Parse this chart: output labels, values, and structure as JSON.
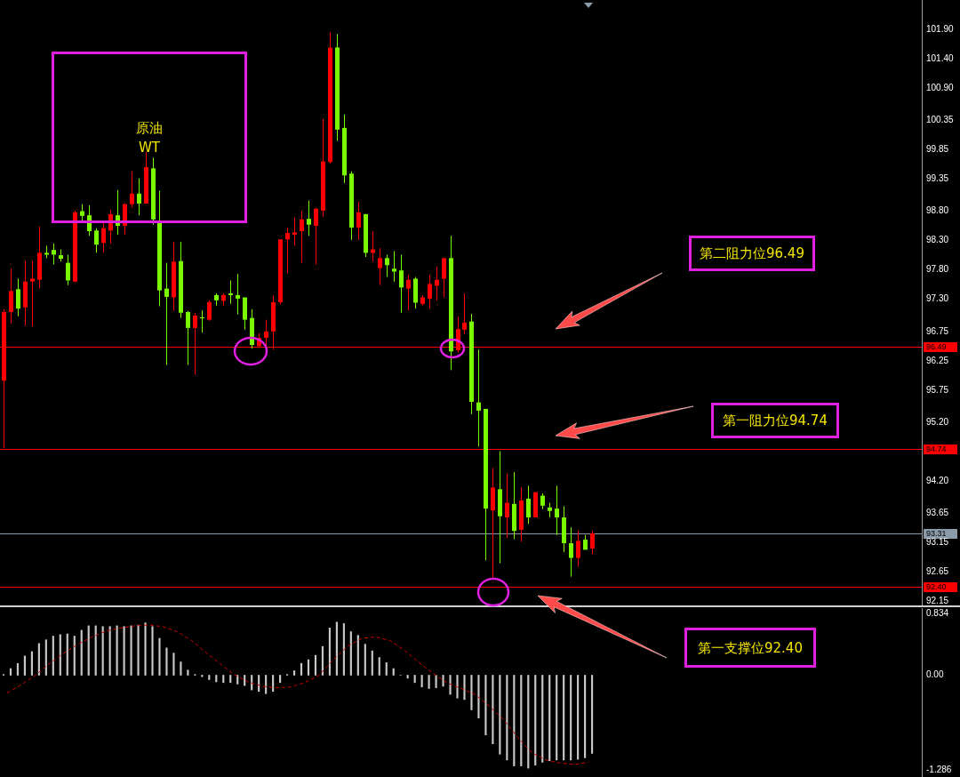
{
  "chart_data": [
    {
      "type": "candlestick",
      "categories": [
        null,
        null,
        null,
        null,
        null,
        null,
        null,
        null,
        null,
        null,
        null,
        null,
        null,
        null,
        null,
        null,
        null,
        null,
        null,
        null,
        null,
        null,
        null,
        null,
        null,
        null,
        null,
        null,
        null,
        null,
        null,
        null,
        null,
        null,
        null,
        null,
        null,
        null,
        null,
        null,
        null,
        null,
        null,
        null,
        null,
        null,
        null,
        null,
        null,
        null,
        null,
        null,
        null,
        null,
        null,
        null,
        null,
        null,
        null,
        null,
        null,
        null,
        null,
        null,
        null,
        null,
        null,
        null,
        null,
        null,
        null,
        null,
        null,
        null,
        null,
        null,
        null,
        null,
        null,
        null,
        null,
        null,
        null,
        null,
        null,
        null,
        null,
        null,
        null,
        null,
        null,
        null,
        null,
        null,
        null,
        null,
        null,
        null,
        null,
        null,
        null,
        null,
        null,
        null,
        null,
        null,
        null,
        null,
        null,
        null,
        null,
        null,
        null,
        null,
        null,
        null,
        null,
        null,
        null,
        null,
        null,
        null,
        null,
        null,
        null,
        null,
        null,
        null,
        null,
        null
      ],
      "ohlc": [
        [
          95.91,
          97.13,
          94.76,
          97.08
        ],
        [
          97.08,
          97.82,
          96.88,
          97.44
        ],
        [
          97.47,
          97.65,
          97.01,
          97.14
        ],
        [
          97.16,
          97.95,
          96.85,
          97.6
        ],
        [
          97.6,
          97.95,
          96.84,
          97.65
        ],
        [
          97.63,
          98.54,
          97.48,
          98.09
        ],
        [
          98.09,
          98.21,
          98.0,
          98.06
        ],
        [
          98.14,
          98.25,
          97.89,
          98.06
        ],
        [
          98.05,
          98.15,
          97.94,
          97.99
        ],
        [
          97.92,
          98.06,
          97.54,
          97.62
        ],
        [
          97.6,
          98.81,
          97.59,
          98.78
        ],
        [
          98.8,
          98.92,
          98.61,
          98.72
        ],
        [
          98.73,
          98.9,
          98.38,
          98.46
        ],
        [
          98.47,
          98.51,
          98.09,
          98.23
        ],
        [
          98.26,
          98.61,
          98.09,
          98.51
        ],
        [
          98.47,
          98.83,
          98.25,
          98.75
        ],
        [
          98.73,
          99.16,
          98.4,
          98.55
        ],
        [
          98.55,
          98.93,
          98.4,
          98.92
        ],
        [
          98.92,
          99.48,
          98.86,
          99.1
        ],
        [
          99.1,
          99.36,
          98.73,
          98.93
        ],
        [
          98.93,
          99.81,
          98.93,
          99.55
        ],
        [
          99.53,
          99.71,
          98.57,
          98.66
        ],
        [
          98.61,
          99.15,
          97.18,
          97.45
        ],
        [
          97.48,
          97.92,
          96.18,
          97.34
        ],
        [
          97.33,
          98.28,
          97.1,
          97.94
        ],
        [
          97.95,
          98.28,
          96.98,
          97.07
        ],
        [
          97.08,
          97.1,
          96.18,
          96.81
        ],
        [
          96.81,
          97.07,
          96.01,
          97.02
        ],
        [
          96.99,
          97.11,
          96.73,
          96.98
        ],
        [
          96.95,
          97.28,
          96.93,
          97.25
        ],
        [
          97.37,
          97.4,
          97.19,
          97.28
        ],
        [
          97.27,
          97.4,
          97.19,
          97.37
        ],
        [
          97.4,
          97.62,
          97.22,
          97.37
        ],
        [
          97.37,
          97.73,
          97.04,
          97.31
        ],
        [
          97.33,
          97.33,
          96.78,
          96.95
        ],
        [
          96.98,
          97.13,
          96.46,
          96.52
        ],
        [
          96.5,
          96.72,
          96.49,
          96.64
        ],
        [
          96.64,
          96.95,
          96.49,
          96.75
        ],
        [
          96.75,
          97.36,
          96.44,
          97.25
        ],
        [
          97.25,
          98.32,
          97.21,
          98.32
        ],
        [
          98.32,
          98.52,
          97.74,
          98.43
        ],
        [
          98.4,
          98.69,
          98.21,
          98.44
        ],
        [
          98.46,
          98.8,
          97.92,
          98.66
        ],
        [
          98.67,
          98.98,
          98.38,
          98.57
        ],
        [
          98.55,
          98.86,
          97.89,
          98.84
        ],
        [
          98.81,
          100.37,
          98.7,
          99.65
        ],
        [
          99.64,
          101.85,
          99.61,
          101.59
        ],
        [
          101.59,
          101.82,
          100.0,
          100.19
        ],
        [
          100.22,
          100.45,
          99.28,
          99.41
        ],
        [
          99.44,
          99.48,
          98.31,
          98.52
        ],
        [
          98.52,
          98.96,
          98.31,
          98.78
        ],
        [
          98.75,
          98.75,
          98.02,
          98.09
        ],
        [
          98.09,
          98.46,
          97.94,
          98.15
        ],
        [
          97.83,
          98.17,
          97.54,
          98.0
        ],
        [
          98.0,
          98.06,
          97.68,
          97.88
        ],
        [
          97.82,
          98.12,
          97.6,
          97.77
        ],
        [
          97.79,
          98.06,
          97.07,
          97.5
        ],
        [
          97.48,
          97.71,
          97.11,
          97.63
        ],
        [
          97.65,
          97.68,
          97.14,
          97.24
        ],
        [
          97.22,
          97.37,
          97.19,
          97.33
        ],
        [
          97.31,
          97.71,
          97.14,
          97.56
        ],
        [
          97.53,
          97.86,
          97.28,
          97.63
        ],
        [
          97.65,
          98.0,
          97.33,
          98.0
        ],
        [
          98.0,
          98.38,
          96.09,
          96.41
        ],
        [
          96.43,
          97.01,
          96.39,
          96.79
        ],
        [
          96.78,
          97.4,
          96.7,
          96.9
        ],
        [
          96.92,
          97.05,
          95.34,
          95.55
        ],
        [
          95.54,
          96.44,
          94.79,
          95.4
        ],
        [
          95.43,
          95.43,
          92.85,
          93.73
        ],
        [
          93.7,
          94.42,
          92.54,
          94.09
        ],
        [
          94.06,
          94.71,
          92.8,
          93.6
        ],
        [
          93.58,
          94.32,
          93.23,
          93.83
        ],
        [
          93.81,
          94.35,
          93.21,
          93.35
        ],
        [
          93.37,
          94.09,
          93.17,
          93.87
        ],
        [
          93.9,
          94.12,
          93.47,
          93.58
        ],
        [
          93.58,
          94.01,
          93.58,
          94.01
        ],
        [
          93.95,
          93.99,
          93.72,
          93.78
        ],
        [
          93.75,
          93.83,
          93.58,
          93.69
        ],
        [
          93.73,
          94.12,
          93.28,
          93.58
        ],
        [
          93.58,
          93.77,
          92.99,
          93.14
        ],
        [
          93.14,
          93.41,
          92.57,
          92.89
        ],
        [
          92.89,
          93.35,
          92.74,
          93.18
        ],
        [
          93.2,
          93.28,
          93.03,
          93.03
        ],
        [
          93.05,
          93.35,
          92.95,
          93.31
        ],
        null,
        null,
        null,
        null,
        null,
        null,
        null,
        null,
        null,
        null,
        null,
        null,
        null,
        null,
        null,
        null,
        null,
        null,
        null,
        null,
        null,
        null,
        null,
        null,
        null,
        null,
        null,
        null,
        null,
        null,
        null,
        null,
        null,
        null,
        null,
        null,
        null,
        null,
        null,
        null,
        null,
        null,
        null,
        null,
        null,
        null
      ],
      "colors": [
        "#ff0000",
        "#ff0000",
        "#7cfc00",
        "#ff0000",
        "#ff0000",
        "#ff0000",
        "#7cfc00",
        "#7cfc00",
        "#7cfc00",
        "#7cfc00",
        "#ff0000",
        "#7cfc00",
        "#7cfc00",
        "#7cfc00",
        "#ff0000",
        "#ff0000",
        "#7cfc00",
        "#ff0000",
        "#ff0000",
        "#7cfc00",
        "#ff0000",
        "#7cfc00",
        "#7cfc00",
        "#7cfc00",
        "#ff0000",
        "#7cfc00",
        "#7cfc00",
        "#ff0000",
        "#7cfc00",
        "#ff0000",
        "#7cfc00",
        "#ff0000",
        "#7cfc00",
        "#7cfc00",
        "#7cfc00",
        "#7cfc00",
        "#ff0000",
        "#ff0000",
        "#ff0000",
        "#ff0000",
        "#ff0000",
        "#ff0000",
        "#ff0000",
        "#7cfc00",
        "#ff0000",
        "#ff0000",
        "#ff0000",
        "#7cfc00",
        "#7cfc00",
        "#7cfc00",
        "#ff0000",
        "#7cfc00",
        "#ff0000",
        "#ff0000",
        "#7cfc00",
        "#7cfc00",
        "#7cfc00",
        "#ff0000",
        "#7cfc00",
        "#ff0000",
        "#ff0000",
        "#ff0000",
        "#ff0000",
        "#7cfc00",
        "#ff0000",
        "#ff0000",
        "#7cfc00",
        "#7cfc00",
        "#7cfc00",
        "#ff0000",
        "#7cfc00",
        "#ff0000",
        "#7cfc00",
        "#ff0000",
        "#7cfc00",
        "#ff0000",
        "#7cfc00",
        "#7cfc00",
        "#7cfc00",
        "#7cfc00",
        "#7cfc00",
        "#ff0000",
        "#7cfc00",
        "#ff0000",
        null,
        null,
        null,
        null,
        null,
        null,
        null,
        null,
        null,
        null,
        null,
        null,
        null,
        null,
        null,
        null,
        null,
        null,
        null,
        null,
        null,
        null,
        null,
        null,
        null,
        null,
        null,
        null,
        null,
        null,
        null,
        null,
        null,
        null,
        null,
        null,
        null,
        null,
        null,
        null,
        null,
        null,
        null,
        null,
        null,
        null
      ],
      "ylim": [
        92.08,
        102.4
      ],
      "yticks": [
        {
          "value": 101.9,
          "label": "101.90"
        },
        {
          "value": 101.4,
          "label": "101.40"
        },
        {
          "value": 100.9,
          "label": "100.90"
        },
        {
          "value": 100.35,
          "label": "100.35"
        },
        {
          "value": 99.85,
          "label": "99.85"
        },
        {
          "value": 99.35,
          "label": "99.35"
        },
        {
          "value": 98.8,
          "label": "98.80"
        },
        {
          "value": 98.3,
          "label": "98.30"
        },
        {
          "value": 97.8,
          "label": "97.80"
        },
        {
          "value": 97.3,
          "label": "97.30"
        },
        {
          "value": 96.75,
          "label": "96.75"
        },
        {
          "value": 96.25,
          "label": "96.25"
        },
        {
          "value": 95.75,
          "label": "95.75"
        },
        {
          "value": 95.2,
          "label": "95.20"
        },
        {
          "value": 94.2,
          "label": "94.20"
        },
        {
          "value": 93.65,
          "label": "93.65"
        },
        {
          "value": 93.15,
          "label": "93.15"
        },
        {
          "value": 92.65,
          "label": "92.65"
        },
        {
          "value": 92.15,
          "label": "92.15"
        }
      ],
      "tick_labels": "y",
      "ref_lines": [
        {
          "axis": "y",
          "value": 96.49,
          "label": "96.49",
          "color": "#ff0000"
        },
        {
          "axis": "y",
          "value": 94.74,
          "label": "94.74",
          "color": "#ff0000"
        },
        {
          "axis": "y",
          "value": 93.31,
          "label": "93.31",
          "color": "#8a9aa8"
        },
        {
          "axis": "y",
          "value": 92.4,
          "label": "92.40",
          "color": "#ff0000"
        }
      ],
      "annotations": [
        "原油\nWT",
        "第二阻力位96.49",
        "第一阻力位94.74",
        "第一支撑位92.40"
      ]
    },
    {
      "type": "bar",
      "categories": [
        null,
        null,
        null,
        null,
        null,
        null,
        null,
        null,
        null,
        null,
        null,
        null,
        null,
        null,
        null,
        null,
        null,
        null,
        null,
        null,
        null,
        null,
        null,
        null,
        null,
        null,
        null,
        null,
        null,
        null,
        null,
        null,
        null,
        null,
        null,
        null,
        null,
        null,
        null,
        null,
        null,
        null,
        null,
        null,
        null,
        null,
        null,
        null,
        null,
        null,
        null,
        null,
        null,
        null,
        null,
        null,
        null,
        null,
        null,
        null,
        null,
        null,
        null,
        null,
        null,
        null,
        null,
        null,
        null,
        null,
        null,
        null,
        null,
        null,
        null,
        null,
        null,
        null,
        null,
        null,
        null,
        null,
        null,
        null,
        null,
        null,
        null,
        null,
        null,
        null,
        null,
        null,
        null,
        null,
        null,
        null,
        null,
        null,
        null,
        null,
        null,
        null,
        null,
        null,
        null,
        null,
        null,
        null,
        null,
        null,
        null,
        null,
        null,
        null,
        null,
        null,
        null,
        null,
        null,
        null,
        null,
        null,
        null,
        null,
        null,
        null,
        null,
        null,
        null,
        null
      ],
      "series": [
        {
          "type": "bar",
          "color": "#c8c8c8",
          "values": [
            0.01,
            0.09,
            0.16,
            0.26,
            0.32,
            0.43,
            0.48,
            0.53,
            0.55,
            0.56,
            0.53,
            0.61,
            0.67,
            0.67,
            0.66,
            0.66,
            0.67,
            0.66,
            0.67,
            0.68,
            0.71,
            0.66,
            0.5,
            0.37,
            0.3,
            0.18,
            0.07,
            0.01,
            -0.02,
            -0.06,
            -0.09,
            -0.1,
            -0.1,
            -0.12,
            -0.14,
            -0.2,
            -0.22,
            -0.25,
            -0.22,
            -0.1,
            0.01,
            0.06,
            0.16,
            0.21,
            0.27,
            0.39,
            0.64,
            0.72,
            0.7,
            0.59,
            0.54,
            0.42,
            0.33,
            0.24,
            0.17,
            0.09,
            0.0,
            -0.04,
            -0.1,
            -0.16,
            -0.18,
            -0.17,
            -0.15,
            -0.26,
            -0.31,
            -0.33,
            -0.47,
            -0.58,
            -0.81,
            -0.93,
            -1.07,
            -1.15,
            -1.23,
            -1.23,
            -1.26,
            -1.22,
            -1.18,
            -1.16,
            -1.15,
            -1.15,
            -1.15,
            -1.14,
            -1.12,
            -1.06,
            null,
            null,
            null,
            null,
            null,
            null,
            null,
            null,
            null,
            null,
            null,
            null,
            null,
            null,
            null,
            null,
            null,
            null,
            null,
            null,
            null,
            null,
            null,
            null,
            null,
            null,
            null,
            null,
            null,
            null,
            null,
            null,
            null,
            null,
            null,
            null,
            null,
            null,
            null,
            null,
            null,
            null,
            null,
            null,
            null,
            null
          ]
        }
      ],
      "ylim": [
        -1.38,
        0.91
      ],
      "yticks": [
        {
          "value": 0.834,
          "label": "0.834"
        },
        {
          "value": 0,
          "label": "0.00"
        },
        {
          "value": -1.286,
          "label": "-1.286"
        }
      ],
      "tick_labels": "y"
    },
    {
      "type": "line",
      "categories": [
        null,
        null,
        null,
        null,
        null,
        null,
        null,
        null,
        null,
        null,
        null,
        null,
        null,
        null,
        null,
        null,
        null,
        null,
        null,
        null,
        null,
        null,
        null,
        null,
        null,
        null,
        null,
        null,
        null,
        null,
        null,
        null,
        null,
        null,
        null,
        null,
        null,
        null,
        null,
        null,
        null,
        null,
        null,
        null,
        null,
        null,
        null,
        null,
        null,
        null,
        null,
        null,
        null,
        null,
        null,
        null,
        null,
        null,
        null,
        null,
        null,
        null,
        null,
        null,
        null
      ],
      "series": [
        {
          "color": "#cc0000",
          "values": [
            -0.24,
            -0.13,
            0,
            0.16,
            0.3,
            0.42,
            0.52,
            0.6,
            0.64,
            0.67,
            0.68,
            0.66,
            0.59,
            0.47,
            0.31,
            0.16,
            0.01,
            -0.09,
            -0.15,
            -0.17,
            -0.16,
            -0.1,
            0,
            0.21,
            0.39,
            0.5,
            0.52,
            0.47,
            0.34,
            0.18,
            0.03,
            -0.1,
            -0.18,
            -0.26,
            -0.42,
            -0.6,
            -0.84,
            -1.05,
            -1.15,
            -1.19,
            -1.21,
            -1.18,
            null,
            null,
            null,
            null,
            null,
            null,
            null,
            null,
            null,
            null,
            null,
            null,
            null,
            null,
            null,
            null,
            null,
            null,
            null,
            null,
            null,
            null,
            null
          ]
        }
      ],
      "line_style": "dashed",
      "marker": "none",
      "ylim": [
        -1.38,
        0.91
      ],
      "tick_labels": false
    }
  ]
}
